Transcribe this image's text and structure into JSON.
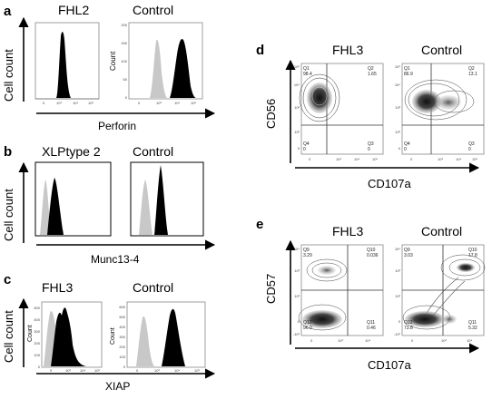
{
  "panel_letters": {
    "a": "a",
    "b": "b",
    "c": "c",
    "d": "d",
    "e": "e"
  },
  "a": {
    "left_title": "FHL2",
    "right_title": "Control",
    "ylabel": "Cell count",
    "xlabel": "Perforin",
    "count_label": "Count",
    "xticks": [
      "0",
      "10³",
      "10⁴",
      "10⁵"
    ],
    "yticks": [
      "0",
      "50",
      "100",
      "150",
      "200"
    ]
  },
  "b": {
    "left_title": "XLPtype 2",
    "right_title": "Control",
    "ylabel": "Cell count",
    "xlabel": "Munc13-4"
  },
  "c": {
    "left_title": "FHL3",
    "right_title": "Control",
    "ylabel": "Cell count",
    "xlabel": "XIAP",
    "count_label": "Count",
    "left_yticks": [
      "0",
      "100",
      "200",
      "300",
      "400",
      "500"
    ],
    "right_yticks": [
      "0",
      "100",
      "200",
      "300",
      "400",
      "500",
      "600"
    ],
    "xticks": [
      "0",
      "10³",
      "10⁴",
      "10⁵"
    ]
  },
  "d": {
    "left_title": "FHL3",
    "right_title": "Control",
    "ylabel": "CD56",
    "xlabel": "CD107a",
    "yticks": [
      "10⁵",
      "10⁴",
      "10³",
      "10²",
      "0"
    ],
    "xticks": [
      "0",
      "10³",
      "10⁴",
      "10⁵"
    ],
    "left_q": {
      "q1": "Q1",
      "q1v": "98.4",
      "q2": "Q2",
      "q2v": "1.65",
      "q4": "Q4",
      "q4v": "0",
      "q3": "Q3",
      "q3v": "0"
    },
    "right_q": {
      "q1": "Q1",
      "q1v": "86.9",
      "q2": "Q2",
      "q2v": "13.1",
      "q4": "Q4",
      "q4v": "0",
      "q3": "Q3",
      "q3v": "0"
    }
  },
  "e": {
    "left_title": "FHL3",
    "right_title": "Control",
    "ylabel": "CD57",
    "xlabel": "CD107a",
    "yticks": [
      "10⁴",
      "10³",
      "10²",
      "0",
      "-10²"
    ],
    "xticks": [
      "0",
      "10³",
      "10⁴"
    ],
    "left_q": {
      "q1": "Q9",
      "q1v": "3.29",
      "q2": "Q10",
      "q2v": "0.036",
      "q4": "Q12",
      "q4v": "96.0",
      "q3": "Q11",
      "q3v": "0.46"
    },
    "right_q": {
      "q1": "Q9",
      "q1v": "3.03",
      "q2": "Q10",
      "q2v": "17.8",
      "q4": "Q12",
      "q4v": "73.8",
      "q3": "Q11",
      "q3v": "5.32"
    }
  }
}
